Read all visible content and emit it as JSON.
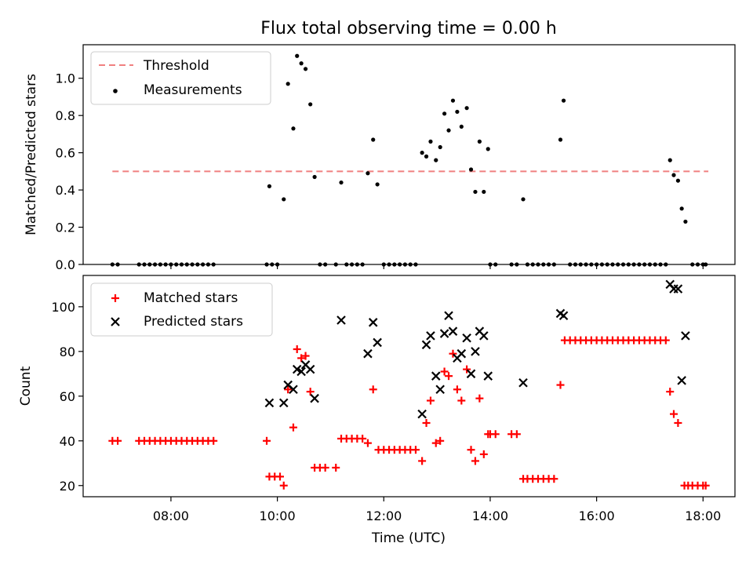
{
  "colors": {
    "threshold": "#f08080",
    "measurements": "#000000",
    "matched": "#ff0000",
    "predicted": "#000000"
  },
  "chart_data": [
    {
      "type": "scatter",
      "title": "Flux total observing time = 0.00 h",
      "xlabel": "",
      "ylabel": "Matched/Predicted stars",
      "xlim": [
        6.35,
        18.6
      ],
      "ylim": [
        0,
        1.18
      ],
      "xticks": [
        "08:00",
        "10:00",
        "12:00",
        "14:00",
        "16:00",
        "18:00"
      ],
      "xtick_values": [
        8,
        10,
        12,
        14,
        16,
        18
      ],
      "yticks": [
        "0.0",
        "0.2",
        "0.4",
        "0.6",
        "0.8",
        "1.0"
      ],
      "ytick_values": [
        0,
        0.2,
        0.4,
        0.6,
        0.8,
        1.0
      ],
      "legend": {
        "position": "top-left",
        "entries": [
          "Threshold",
          "Measurements"
        ]
      },
      "threshold": {
        "name": "Threshold",
        "value": 0.5,
        "x_range": [
          6.9,
          18.1
        ]
      },
      "series": [
        {
          "name": "Measurements",
          "points": [
            [
              6.9,
              0
            ],
            [
              7.0,
              0
            ],
            [
              7.4,
              0
            ],
            [
              7.5,
              0
            ],
            [
              7.6,
              0
            ],
            [
              7.7,
              0
            ],
            [
              7.8,
              0
            ],
            [
              7.9,
              0
            ],
            [
              8.0,
              0
            ],
            [
              8.1,
              0
            ],
            [
              8.2,
              0
            ],
            [
              8.3,
              0
            ],
            [
              8.4,
              0
            ],
            [
              8.5,
              0
            ],
            [
              8.6,
              0
            ],
            [
              8.7,
              0
            ],
            [
              8.8,
              0
            ],
            [
              9.8,
              0
            ],
            [
              9.9,
              0
            ],
            [
              10.0,
              0
            ],
            [
              9.85,
              0.42
            ],
            [
              10.12,
              0.35
            ],
            [
              10.2,
              0.97
            ],
            [
              10.3,
              0.73
            ],
            [
              10.37,
              1.12
            ],
            [
              10.45,
              1.08
            ],
            [
              10.53,
              1.05
            ],
            [
              10.62,
              0.86
            ],
            [
              10.7,
              0.47
            ],
            [
              10.8,
              0
            ],
            [
              10.9,
              0
            ],
            [
              11.1,
              0
            ],
            [
              11.2,
              0.44
            ],
            [
              11.3,
              0
            ],
            [
              11.4,
              0
            ],
            [
              11.5,
              0
            ],
            [
              11.6,
              0
            ],
            [
              11.7,
              0.49
            ],
            [
              11.8,
              0.67
            ],
            [
              11.88,
              0.43
            ],
            [
              12.0,
              0
            ],
            [
              12.1,
              0
            ],
            [
              12.2,
              0
            ],
            [
              12.3,
              0
            ],
            [
              12.4,
              0
            ],
            [
              12.5,
              0
            ],
            [
              12.6,
              0
            ],
            [
              12.72,
              0.6
            ],
            [
              12.8,
              0.58
            ],
            [
              12.88,
              0.66
            ],
            [
              12.98,
              0.56
            ],
            [
              13.06,
              0.63
            ],
            [
              13.14,
              0.81
            ],
            [
              13.22,
              0.72
            ],
            [
              13.3,
              0.88
            ],
            [
              13.38,
              0.82
            ],
            [
              13.46,
              0.74
            ],
            [
              13.56,
              0.84
            ],
            [
              13.64,
              0.51
            ],
            [
              13.72,
              0.39
            ],
            [
              13.8,
              0.66
            ],
            [
              13.88,
              0.39
            ],
            [
              13.96,
              0.62
            ],
            [
              14.0,
              0
            ],
            [
              14.1,
              0
            ],
            [
              14.4,
              0
            ],
            [
              14.5,
              0
            ],
            [
              14.62,
              0.35
            ],
            [
              14.7,
              0
            ],
            [
              14.8,
              0
            ],
            [
              14.9,
              0
            ],
            [
              15.0,
              0
            ],
            [
              15.1,
              0
            ],
            [
              15.2,
              0
            ],
            [
              15.32,
              0.67
            ],
            [
              15.38,
              0.88
            ],
            [
              15.5,
              0
            ],
            [
              15.6,
              0
            ],
            [
              15.7,
              0
            ],
            [
              15.8,
              0
            ],
            [
              15.9,
              0
            ],
            [
              16.0,
              0
            ],
            [
              16.1,
              0
            ],
            [
              16.2,
              0
            ],
            [
              16.3,
              0
            ],
            [
              16.4,
              0
            ],
            [
              16.5,
              0
            ],
            [
              16.6,
              0
            ],
            [
              16.7,
              0
            ],
            [
              16.8,
              0
            ],
            [
              16.9,
              0
            ],
            [
              17.0,
              0
            ],
            [
              17.1,
              0
            ],
            [
              17.2,
              0
            ],
            [
              17.3,
              0
            ],
            [
              17.38,
              0.56
            ],
            [
              17.45,
              0.48
            ],
            [
              17.53,
              0.45
            ],
            [
              17.6,
              0.3
            ],
            [
              17.67,
              0.23
            ],
            [
              17.8,
              0
            ],
            [
              17.9,
              0
            ],
            [
              18.0,
              0
            ],
            [
              18.05,
              0
            ]
          ]
        }
      ]
    },
    {
      "type": "scatter",
      "title": "",
      "xlabel": "Time (UTC)",
      "ylabel": "Count",
      "xlim": [
        6.35,
        18.6
      ],
      "ylim": [
        15,
        114
      ],
      "xticks": [
        "08:00",
        "10:00",
        "12:00",
        "14:00",
        "16:00",
        "18:00"
      ],
      "xtick_values": [
        8,
        10,
        12,
        14,
        16,
        18
      ],
      "yticks": [
        "20",
        "40",
        "60",
        "80",
        "100"
      ],
      "ytick_values": [
        20,
        40,
        60,
        80,
        100
      ],
      "legend": {
        "position": "top-left",
        "entries": [
          "Matched stars",
          "Predicted stars"
        ]
      },
      "series": [
        {
          "name": "Matched stars",
          "points": [
            [
              6.9,
              40
            ],
            [
              7.0,
              40
            ],
            [
              7.4,
              40
            ],
            [
              7.5,
              40
            ],
            [
              7.6,
              40
            ],
            [
              7.7,
              40
            ],
            [
              7.8,
              40
            ],
            [
              7.9,
              40
            ],
            [
              8.0,
              40
            ],
            [
              8.1,
              40
            ],
            [
              8.2,
              40
            ],
            [
              8.3,
              40
            ],
            [
              8.4,
              40
            ],
            [
              8.5,
              40
            ],
            [
              8.6,
              40
            ],
            [
              8.7,
              40
            ],
            [
              8.8,
              40
            ],
            [
              9.8,
              40
            ],
            [
              9.85,
              24
            ],
            [
              9.95,
              24
            ],
            [
              10.05,
              24
            ],
            [
              10.12,
              20
            ],
            [
              10.2,
              63
            ],
            [
              10.3,
              46
            ],
            [
              10.37,
              81
            ],
            [
              10.45,
              77
            ],
            [
              10.53,
              78
            ],
            [
              10.62,
              62
            ],
            [
              10.7,
              28
            ],
            [
              10.8,
              28
            ],
            [
              10.9,
              28
            ],
            [
              11.1,
              28
            ],
            [
              11.2,
              41
            ],
            [
              11.3,
              41
            ],
            [
              11.4,
              41
            ],
            [
              11.5,
              41
            ],
            [
              11.6,
              41
            ],
            [
              11.7,
              39
            ],
            [
              11.8,
              63
            ],
            [
              11.9,
              36
            ],
            [
              12.0,
              36
            ],
            [
              12.1,
              36
            ],
            [
              12.2,
              36
            ],
            [
              12.3,
              36
            ],
            [
              12.4,
              36
            ],
            [
              12.5,
              36
            ],
            [
              12.6,
              36
            ],
            [
              12.72,
              31
            ],
            [
              12.8,
              48
            ],
            [
              12.88,
              58
            ],
            [
              12.98,
              39
            ],
            [
              13.06,
              40
            ],
            [
              13.14,
              71
            ],
            [
              13.22,
              69
            ],
            [
              13.3,
              79
            ],
            [
              13.38,
              63
            ],
            [
              13.46,
              58
            ],
            [
              13.56,
              72
            ],
            [
              13.64,
              36
            ],
            [
              13.72,
              31
            ],
            [
              13.8,
              59
            ],
            [
              13.88,
              34
            ],
            [
              13.96,
              43
            ],
            [
              14.0,
              43
            ],
            [
              14.1,
              43
            ],
            [
              14.4,
              43
            ],
            [
              14.5,
              43
            ],
            [
              14.62,
              23
            ],
            [
              14.7,
              23
            ],
            [
              14.8,
              23
            ],
            [
              14.9,
              23
            ],
            [
              15.0,
              23
            ],
            [
              15.1,
              23
            ],
            [
              15.2,
              23
            ],
            [
              15.32,
              65
            ],
            [
              15.4,
              85
            ],
            [
              15.5,
              85
            ],
            [
              15.6,
              85
            ],
            [
              15.7,
              85
            ],
            [
              15.8,
              85
            ],
            [
              15.9,
              85
            ],
            [
              16.0,
              85
            ],
            [
              16.1,
              85
            ],
            [
              16.2,
              85
            ],
            [
              16.3,
              85
            ],
            [
              16.4,
              85
            ],
            [
              16.5,
              85
            ],
            [
              16.6,
              85
            ],
            [
              16.7,
              85
            ],
            [
              16.8,
              85
            ],
            [
              16.9,
              85
            ],
            [
              17.0,
              85
            ],
            [
              17.1,
              85
            ],
            [
              17.2,
              85
            ],
            [
              17.3,
              85
            ],
            [
              17.38,
              62
            ],
            [
              17.45,
              52
            ],
            [
              17.53,
              48
            ],
            [
              17.65,
              20
            ],
            [
              17.72,
              20
            ],
            [
              17.8,
              20
            ],
            [
              17.9,
              20
            ],
            [
              18.0,
              20
            ],
            [
              18.05,
              20
            ]
          ]
        },
        {
          "name": "Predicted stars",
          "points": [
            [
              9.85,
              57
            ],
            [
              10.12,
              57
            ],
            [
              10.2,
              65
            ],
            [
              10.3,
              63
            ],
            [
              10.37,
              72
            ],
            [
              10.45,
              71
            ],
            [
              10.53,
              74
            ],
            [
              10.62,
              72
            ],
            [
              10.7,
              59
            ],
            [
              11.2,
              94
            ],
            [
              11.7,
              79
            ],
            [
              11.8,
              93
            ],
            [
              11.88,
              84
            ],
            [
              12.72,
              52
            ],
            [
              12.8,
              83
            ],
            [
              12.88,
              87
            ],
            [
              12.98,
              69
            ],
            [
              13.06,
              63
            ],
            [
              13.14,
              88
            ],
            [
              13.22,
              96
            ],
            [
              13.3,
              89
            ],
            [
              13.38,
              77
            ],
            [
              13.46,
              79
            ],
            [
              13.56,
              86
            ],
            [
              13.64,
              70
            ],
            [
              13.72,
              80
            ],
            [
              13.8,
              89
            ],
            [
              13.88,
              87
            ],
            [
              13.96,
              69
            ],
            [
              14.62,
              66
            ],
            [
              15.32,
              97
            ],
            [
              15.38,
              96
            ],
            [
              17.38,
              110
            ],
            [
              17.45,
              108
            ],
            [
              17.53,
              108
            ],
            [
              17.6,
              67
            ],
            [
              17.67,
              87
            ]
          ]
        }
      ]
    }
  ]
}
